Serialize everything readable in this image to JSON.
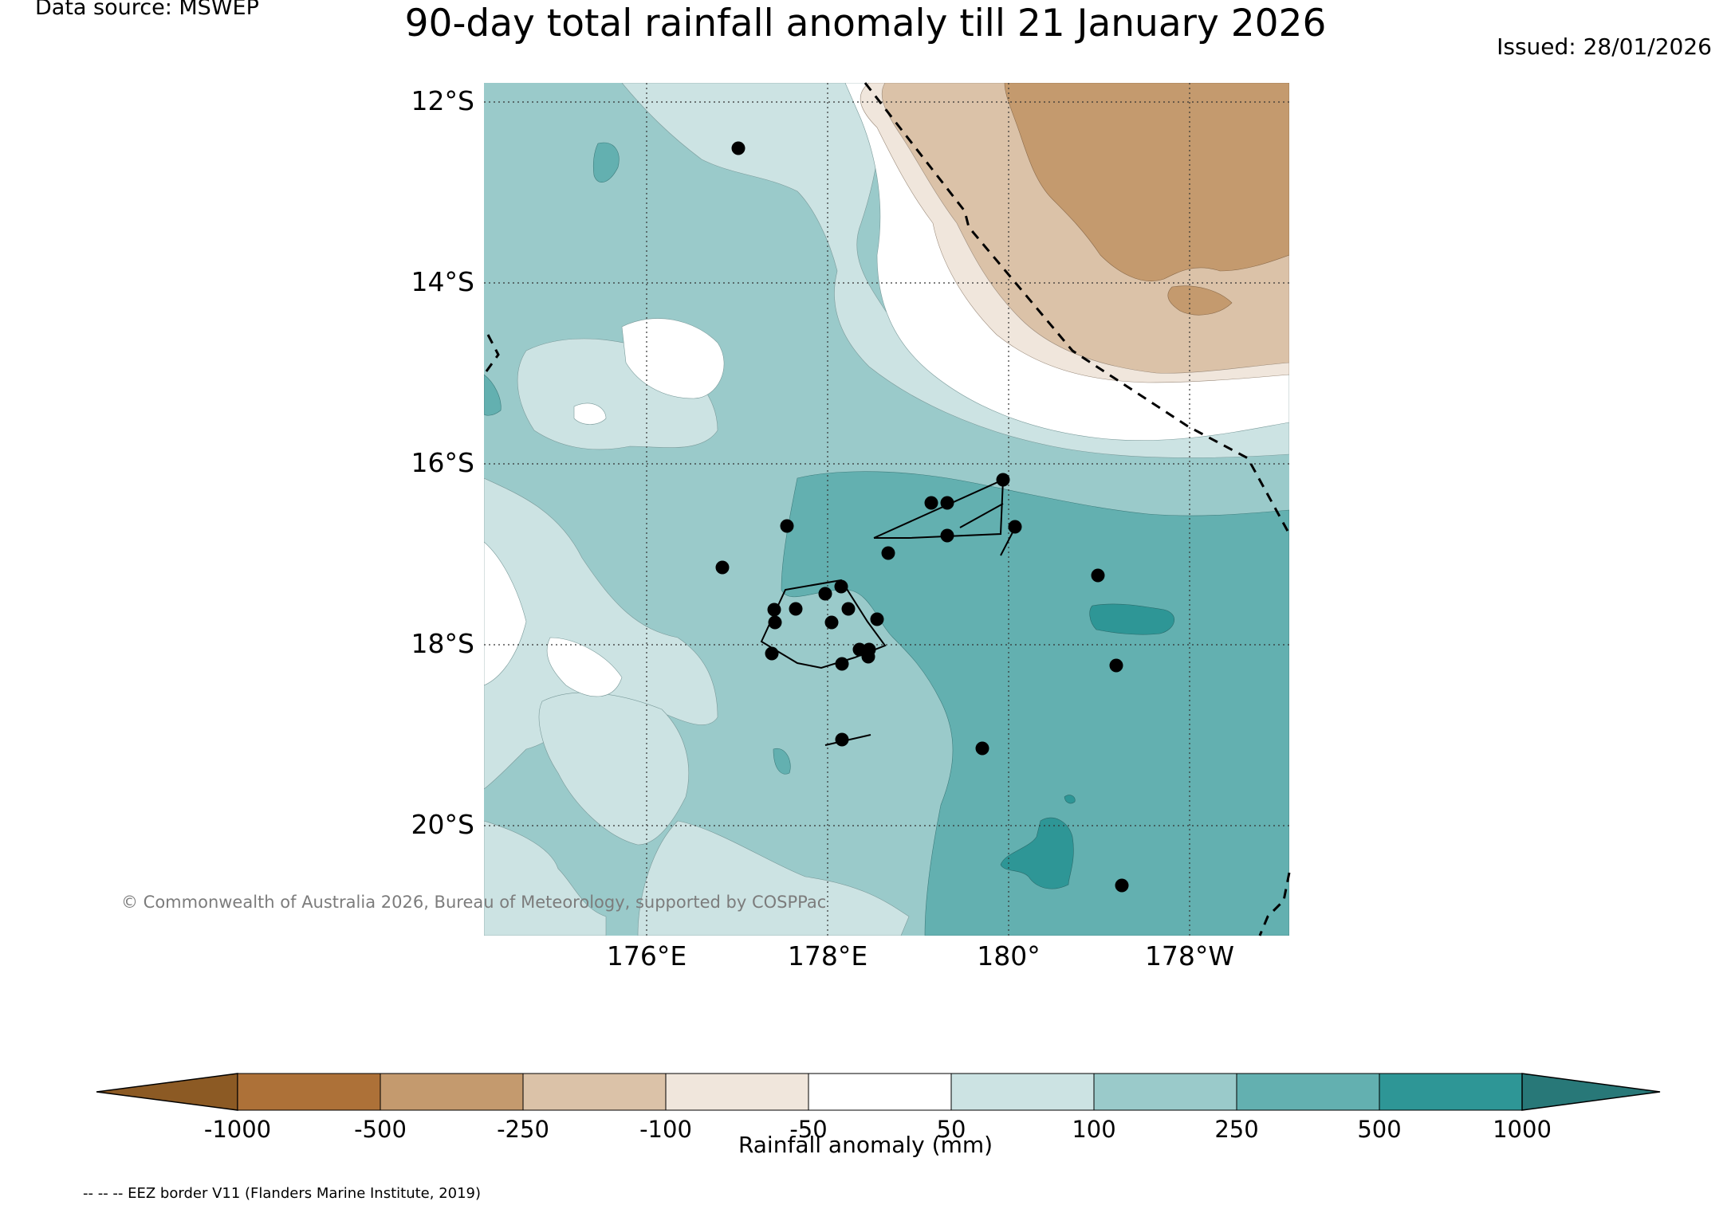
{
  "header": {
    "data_source": "Data source: MSWEP",
    "title": "90-day total rainfall anomaly till 21 January 2026",
    "issued": "Issued: 28/01/2026"
  },
  "map": {
    "lat_labels": [
      "12°S",
      "14°S",
      "16°S",
      "18°S",
      "20°S"
    ],
    "lon_labels": [
      "176°E",
      "178°E",
      "180°",
      "178°W"
    ],
    "copyright": "© Commonwealth of Australia 2026, Bureau of Meteorology, supported by COSPPac"
  },
  "colorbar": {
    "tick_labels": [
      "-1000",
      "-500",
      "-250",
      "-100",
      "-50",
      "50",
      "100",
      "250",
      "500",
      "1000"
    ],
    "label": "Rainfall anomaly (mm)",
    "colors": {
      "extend_low": "#8c5a24",
      "b1": "#ad7138",
      "b2": "#c49a6e",
      "b3": "#dbc2a8",
      "b4": "#f0e6dc",
      "b5": "#ffffff",
      "b6": "#cce3e3",
      "b7": "#9acaca",
      "b8": "#63b0b0",
      "b9": "#2e9696",
      "extend_high": "#287878"
    }
  },
  "footer": {
    "eez_note": "-- -- -- EEZ border V11 (Flanders Marine Institute, 2019)"
  }
}
